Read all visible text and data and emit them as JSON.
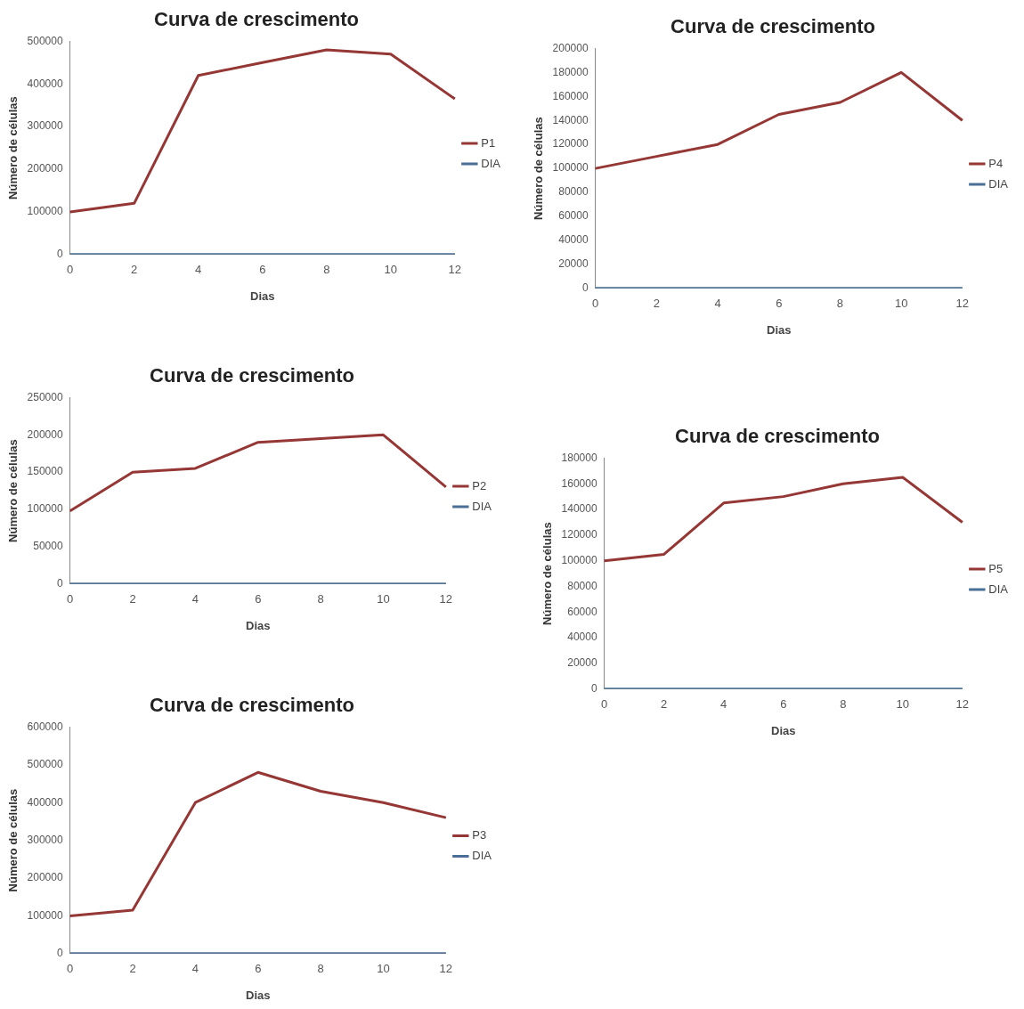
{
  "chart_data": [
    {
      "type": "line",
      "title": "Curva de crescimento",
      "xlabel": "Dias",
      "ylabel": "Número de células",
      "categories": [
        "0",
        "2",
        "4",
        "6",
        "8",
        "10",
        "12"
      ],
      "series": [
        {
          "name": "P1",
          "color": "#953735",
          "values": [
            100000,
            120000,
            420000,
            450000,
            480000,
            470000,
            365000
          ]
        },
        {
          "name": "DIA",
          "color": "#4a6f96",
          "values": [
            0,
            0,
            0,
            0,
            0,
            0,
            0
          ]
        }
      ],
      "ylim": [
        0,
        500000
      ],
      "yticks": [
        0,
        100000,
        200000,
        300000,
        400000,
        500000
      ],
      "legend": "right",
      "grid": false,
      "marker": "none",
      "line_style": "solid"
    },
    {
      "type": "line",
      "title": "Curva de crescimento",
      "xlabel": "Dias",
      "ylabel": "Número de células",
      "categories": [
        "0",
        "2",
        "4",
        "6",
        "8",
        "10",
        "12"
      ],
      "series": [
        {
          "name": "P4",
          "color": "#953735",
          "values": [
            100000,
            110000,
            120000,
            145000,
            155000,
            180000,
            140000
          ]
        },
        {
          "name": "DIA",
          "color": "#4a6f96",
          "values": [
            0,
            0,
            0,
            0,
            0,
            0,
            0
          ]
        }
      ],
      "ylim": [
        0,
        200000
      ],
      "yticks": [
        0,
        20000,
        40000,
        60000,
        80000,
        100000,
        120000,
        140000,
        160000,
        180000,
        200000
      ],
      "legend": "right",
      "grid": false,
      "marker": "none",
      "line_style": "solid"
    },
    {
      "type": "line",
      "title": "Curva de crescimento",
      "xlabel": "Dias",
      "ylabel": "Número de células",
      "categories": [
        "0",
        "2",
        "4",
        "6",
        "8",
        "10",
        "12"
      ],
      "series": [
        {
          "name": "P2",
          "color": "#953735",
          "values": [
            98000,
            150000,
            155000,
            190000,
            195000,
            200000,
            130000
          ]
        },
        {
          "name": "DIA",
          "color": "#4a6f96",
          "values": [
            0,
            0,
            0,
            0,
            0,
            0,
            0
          ]
        }
      ],
      "ylim": [
        0,
        250000
      ],
      "yticks": [
        0,
        50000,
        100000,
        150000,
        200000,
        250000
      ],
      "legend": "right",
      "grid": false,
      "marker": "none",
      "line_style": "solid"
    },
    {
      "type": "line",
      "title": "Curva de crescimento",
      "xlabel": "Dias",
      "ylabel": "Número de células",
      "categories": [
        "0",
        "2",
        "4",
        "6",
        "8",
        "10",
        "12"
      ],
      "series": [
        {
          "name": "P5",
          "color": "#953735",
          "values": [
            100000,
            105000,
            145000,
            150000,
            160000,
            165000,
            130000
          ]
        },
        {
          "name": "DIA",
          "color": "#4a6f96",
          "values": [
            0,
            0,
            0,
            0,
            0,
            0,
            0
          ]
        }
      ],
      "ylim": [
        0,
        180000
      ],
      "yticks": [
        0,
        20000,
        40000,
        60000,
        80000,
        100000,
        120000,
        140000,
        160000,
        180000
      ],
      "legend": "right",
      "grid": false,
      "marker": "none",
      "line_style": "solid"
    },
    {
      "type": "line",
      "title": "Curva de crescimento",
      "xlabel": "Dias",
      "ylabel": "Número de células",
      "categories": [
        "0",
        "2",
        "4",
        "6",
        "8",
        "10",
        "12"
      ],
      "series": [
        {
          "name": "P3",
          "color": "#953735",
          "values": [
            100000,
            115000,
            400000,
            480000,
            430000,
            400000,
            360000
          ]
        },
        {
          "name": "DIA",
          "color": "#4a6f96",
          "values": [
            0,
            0,
            0,
            0,
            0,
            0,
            0
          ]
        }
      ],
      "ylim": [
        0,
        600000
      ],
      "yticks": [
        0,
        100000,
        200000,
        300000,
        400000,
        500000,
        600000
      ],
      "legend": "right",
      "grid": false,
      "marker": "none",
      "line_style": "solid"
    }
  ]
}
